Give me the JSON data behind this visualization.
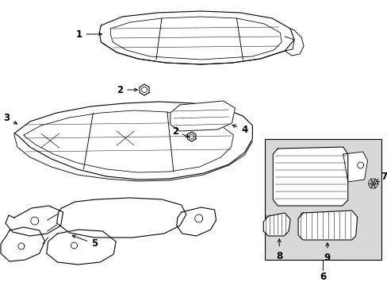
{
  "bg_color": "#ffffff",
  "line_color": "#000000",
  "box_bg_color": "#d8d8d8",
  "lw_main": 0.8
}
